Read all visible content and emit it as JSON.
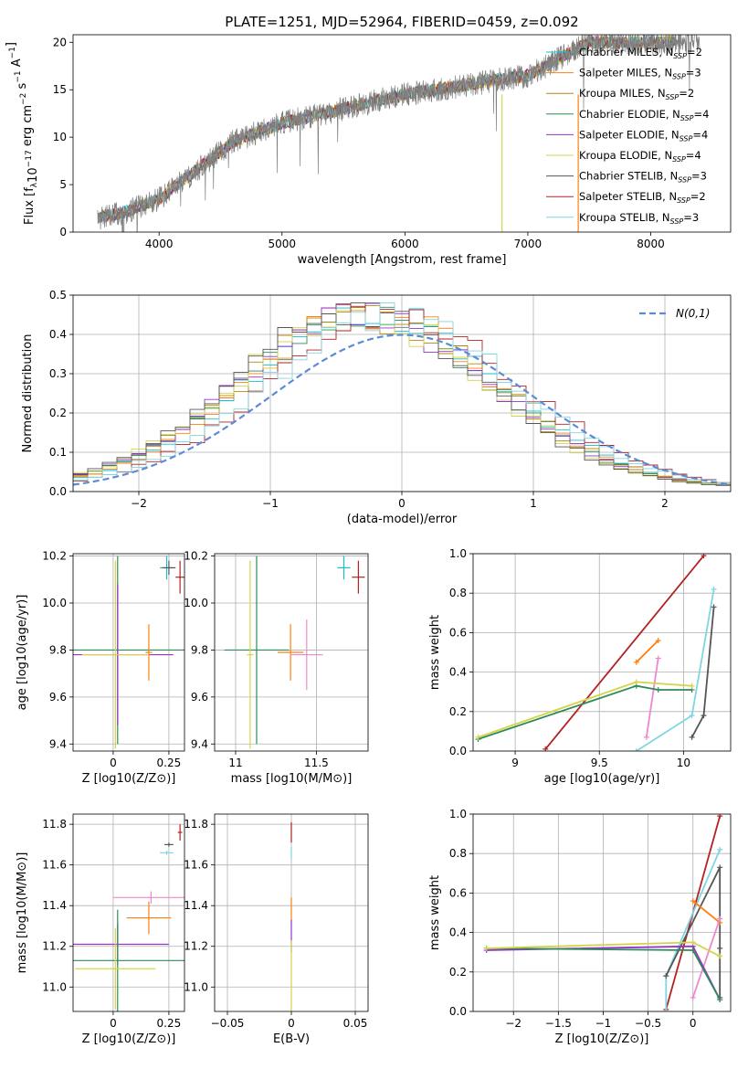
{
  "figure": {
    "title": "PLATE=1251, MJD=52964, FIBERID=0459, z=0.092"
  },
  "model_colors": [
    "#17becf",
    "#ff7f0e",
    "#b8860b",
    "#2e8b57",
    "#9932cc",
    "#d4d448",
    "#555555",
    "#b22222",
    "#7fd6e0"
  ],
  "chart_data": [
    {
      "id": "spectrum",
      "type": "line",
      "xlabel": "wavelength [Angstrom, rest frame]",
      "ylabel": "Flux [f_λ 10^-17 erg cm^-2 s^-1 A^-1]",
      "xlim": [
        3300,
        8650
      ],
      "ylim": [
        0,
        20.8
      ],
      "xticks": [
        4000,
        5000,
        6000,
        7000,
        8000
      ],
      "yticks": [
        0,
        5,
        10,
        15,
        20
      ],
      "grid": false,
      "legend": "upper-right",
      "observed": {
        "color": "#808080",
        "x_range": [
          3500,
          8400
        ],
        "anchors_x": [
          3500,
          3700,
          4000,
          4300,
          4600,
          5000,
          5500,
          6000,
          6500,
          7000,
          7500,
          8000,
          8400
        ],
        "anchors_y": [
          1.5,
          2.0,
          3.5,
          6.5,
          9.5,
          11.5,
          13.0,
          14.5,
          15.5,
          16.5,
          20.0,
          20.0,
          20.0
        ]
      },
      "series": [
        {
          "base": "Chabrier MILES",
          "nssp": "2"
        },
        {
          "base": "Salpeter MILES",
          "nssp": "3"
        },
        {
          "base": "Kroupa MILES",
          "nssp": "2"
        },
        {
          "base": "Chabrier ELODIE",
          "nssp": "4"
        },
        {
          "base": "Salpeter ELODIE",
          "nssp": "4"
        },
        {
          "base": "Kroupa ELODIE",
          "nssp": "4"
        },
        {
          "base": "Chabrier STELIB",
          "nssp": "3"
        },
        {
          "base": "Salpeter STELIB",
          "nssp": "2"
        },
        {
          "base": "Kroupa STELIB",
          "nssp": "3"
        }
      ],
      "spikes": [
        {
          "x": 6790,
          "color": "#d4d448"
        },
        {
          "x": 7410,
          "color": "#ff7f0e"
        }
      ]
    },
    {
      "id": "residuals",
      "type": "histogram",
      "xlabel": "(data-model)/error",
      "ylabel": "Normed distribution",
      "xlim": [
        -2.5,
        2.5
      ],
      "ylim": [
        0,
        0.5
      ],
      "xticks": [
        -2,
        -1,
        0,
        1,
        2
      ],
      "yticks": [
        0.0,
        0.1,
        0.2,
        0.3,
        0.4,
        0.5
      ],
      "grid": true,
      "legend": "upper-right",
      "reference": {
        "label": "N(0,1)",
        "mean": 0,
        "sigma": 1,
        "color": "#5b8bd6"
      },
      "bins": 45
    },
    {
      "id": "age-vs-Z",
      "type": "errorbar",
      "xlabel": "Z [log10(Z/Z⊙)]",
      "ylabel": "age [log10(age/yr)]",
      "xlim": [
        -0.18,
        0.32
      ],
      "ylim": [
        9.37,
        10.21
      ],
      "xticks": [
        0.0,
        0.25
      ],
      "yticks": [
        9.4,
        9.6,
        9.8,
        10.0,
        10.2
      ],
      "grid": true,
      "points": [
        {
          "color": "#17becf",
          "x": 0.24,
          "y": 10.15,
          "xe": 0.03,
          "ye": 0.05
        },
        {
          "color": "#555555",
          "x": 0.25,
          "y": 10.15,
          "xe": 0.03,
          "ye": 0.03
        },
        {
          "color": "#b22222",
          "x": 0.3,
          "y": 10.11,
          "xe": 0.02,
          "ye": 0.07
        },
        {
          "color": "#2e8b57",
          "x": 0.02,
          "y": 9.8,
          "xe": 0.3,
          "ye": 0.4
        },
        {
          "color": "#9932cc",
          "x": 0.02,
          "y": 9.78,
          "xe": 0.25,
          "ye": 0.3
        },
        {
          "color": "#ff7f0e",
          "x": 0.16,
          "y": 9.79,
          "xe": 0.015,
          "ye": 0.12
        },
        {
          "color": "#d4d448",
          "x": 0.01,
          "y": 9.78,
          "xe": 0.15,
          "ye": 0.4
        }
      ]
    },
    {
      "id": "age-vs-mass",
      "type": "errorbar",
      "xlabel": "mass [log10(M/M⊙)]",
      "ylabel": "",
      "xlim": [
        10.87,
        11.82
      ],
      "ylim": [
        9.37,
        10.21
      ],
      "xticks": [
        11.0,
        11.5
      ],
      "yticks": [
        9.4,
        9.6,
        9.8,
        10.0,
        10.2
      ],
      "grid": true,
      "points": [
        {
          "color": "#17becf",
          "x": 11.67,
          "y": 10.15,
          "xe": 0.04,
          "ye": 0.05
        },
        {
          "color": "#b22222",
          "x": 11.76,
          "y": 10.11,
          "xe": 0.04,
          "ye": 0.07
        },
        {
          "color": "#2e8b57",
          "x": 11.13,
          "y": 9.8,
          "xe": 0.2,
          "ye": 0.4
        },
        {
          "color": "#ff7f0e",
          "x": 11.34,
          "y": 9.79,
          "xe": 0.08,
          "ye": 0.12
        },
        {
          "color": "#ee88cc",
          "x": 11.44,
          "y": 9.78,
          "xe": 0.1,
          "ye": 0.15
        },
        {
          "color": "#d4d448",
          "x": 11.09,
          "y": 9.78,
          "xe": 0.02,
          "ye": 0.4
        }
      ]
    },
    {
      "id": "massweight-vs-age",
      "type": "line",
      "xlabel": "age [log10(age/yr)]",
      "ylabel": "mass weight",
      "xlim": [
        8.75,
        10.28
      ],
      "ylim": [
        0,
        1.0
      ],
      "xticks": [
        9.0,
        9.5,
        10.0
      ],
      "yticks": [
        0.0,
        0.2,
        0.4,
        0.6,
        0.8,
        1.0
      ],
      "grid": true,
      "lines": [
        {
          "color": "#b22222",
          "x": [
            9.18,
            10.12
          ],
          "y": [
            0.01,
            0.99
          ]
        },
        {
          "color": "#7fd6e0",
          "x": [
            9.72,
            10.05,
            10.18
          ],
          "y": [
            0.0,
            0.18,
            0.82
          ]
        },
        {
          "color": "#555555",
          "x": [
            10.05,
            10.12,
            10.18
          ],
          "y": [
            0.07,
            0.18,
            0.73
          ]
        },
        {
          "color": "#ff7f0e",
          "x": [
            9.72,
            9.85
          ],
          "y": [
            0.45,
            0.56
          ]
        },
        {
          "color": "#ee88cc",
          "x": [
            9.78,
            9.85
          ],
          "y": [
            0.07,
            0.47
          ]
        },
        {
          "color": "#2e8b57",
          "x": [
            8.78,
            9.72,
            9.85,
            10.05
          ],
          "y": [
            0.06,
            0.33,
            0.31,
            0.31
          ]
        },
        {
          "color": "#d4d448",
          "x": [
            8.78,
            9.72,
            10.05
          ],
          "y": [
            0.07,
            0.35,
            0.33
          ]
        }
      ]
    },
    {
      "id": "mass-vs-Z",
      "type": "errorbar",
      "xlabel": "Z [log10(Z/Z⊙)]",
      "ylabel": "mass [log10(M/M⊙)]",
      "xlim": [
        -0.18,
        0.32
      ],
      "ylim": [
        10.88,
        11.85
      ],
      "xticks": [
        0.0,
        0.25
      ],
      "yticks": [
        11.0,
        11.2,
        11.4,
        11.6,
        11.8
      ],
      "grid": true,
      "points": [
        {
          "color": "#555555",
          "x": 0.25,
          "y": 11.7,
          "xe": 0.02,
          "ye": 0.01
        },
        {
          "color": "#b22222",
          "x": 0.3,
          "y": 11.76,
          "xe": 0.01,
          "ye": 0.04
        },
        {
          "color": "#7fd6e0",
          "x": 0.24,
          "y": 11.66,
          "xe": 0.03,
          "ye": 0.01
        },
        {
          "color": "#ee88cc",
          "x": 0.17,
          "y": 11.44,
          "xe": 0.17,
          "ye": 0.03
        },
        {
          "color": "#ff7f0e",
          "x": 0.16,
          "y": 11.34,
          "xe": 0.1,
          "ye": 0.08
        },
        {
          "color": "#9932cc",
          "x": 0.02,
          "y": 11.21,
          "xe": 0.23,
          "ye": 0.1
        },
        {
          "color": "#2e8b57",
          "x": 0.02,
          "y": 11.13,
          "xe": 0.33,
          "ye": 0.25
        },
        {
          "color": "#d4d448",
          "x": 0.01,
          "y": 11.09,
          "xe": 0.18,
          "ye": 0.2
        }
      ]
    },
    {
      "id": "mass-vs-EBV",
      "type": "errorbar",
      "xlabel": "E(B-V)",
      "ylabel": "",
      "xlim": [
        -0.06,
        0.06
      ],
      "ylim": [
        10.88,
        11.85
      ],
      "xticks": [
        -0.05,
        0.0,
        0.05
      ],
      "yticks": [
        11.0,
        11.2,
        11.4,
        11.6,
        11.8
      ],
      "grid": true,
      "points": [
        {
          "color": "#b22222",
          "x": 0.0,
          "y": 11.76,
          "xe": 0.0,
          "ye": 0.05
        },
        {
          "color": "#7fd6e0",
          "x": 0.0,
          "y": 11.66,
          "xe": 0.0,
          "ye": 0.03
        },
        {
          "color": "#ff7f0e",
          "x": 0.0,
          "y": 11.38,
          "xe": 0.0,
          "ye": 0.06
        },
        {
          "color": "#9932cc",
          "x": 0.0,
          "y": 11.25,
          "xe": 0.0,
          "ye": 0.08
        },
        {
          "color": "#d4d448",
          "x": 0.0,
          "y": 11.05,
          "xe": 0.0,
          "ye": 0.18
        }
      ]
    },
    {
      "id": "massweight-vs-Z",
      "type": "line",
      "xlabel": "Z [log10(Z/Z⊙)]",
      "ylabel": "mass weight",
      "xlim": [
        -2.45,
        0.42
      ],
      "ylim": [
        0,
        1.0
      ],
      "xticks": [
        -2.0,
        -1.5,
        -1.0,
        -0.5,
        0.0
      ],
      "yticks": [
        0.0,
        0.2,
        0.4,
        0.6,
        0.8,
        1.0
      ],
      "grid": true,
      "lines": [
        {
          "color": "#b22222",
          "x": [
            -0.3,
            0.3
          ],
          "y": [
            0.01,
            0.99
          ]
        },
        {
          "color": "#7fd6e0",
          "x": [
            -0.3,
            -0.3,
            0.3
          ],
          "y": [
            0.0,
            0.18,
            0.82
          ]
        },
        {
          "color": "#555555",
          "x": [
            -0.3,
            0.3,
            0.3,
            0.3
          ],
          "y": [
            0.18,
            0.73,
            0.07,
            0.32
          ]
        },
        {
          "color": "#ff7f0e",
          "x": [
            0.0,
            0.3
          ],
          "y": [
            0.56,
            0.45
          ]
        },
        {
          "color": "#ee88cc",
          "x": [
            0.0,
            0.3
          ],
          "y": [
            0.07,
            0.47
          ]
        },
        {
          "color": "#9932cc",
          "x": [
            -2.3,
            0.0,
            0.3
          ],
          "y": [
            0.31,
            0.33,
            0.06
          ]
        },
        {
          "color": "#2e8b57",
          "x": [
            -2.3,
            0.0,
            0.3
          ],
          "y": [
            0.32,
            0.31,
            0.06
          ]
        },
        {
          "color": "#d4d448",
          "x": [
            -2.3,
            0.0,
            0.3
          ],
          "y": [
            0.32,
            0.35,
            0.28
          ]
        }
      ]
    }
  ]
}
